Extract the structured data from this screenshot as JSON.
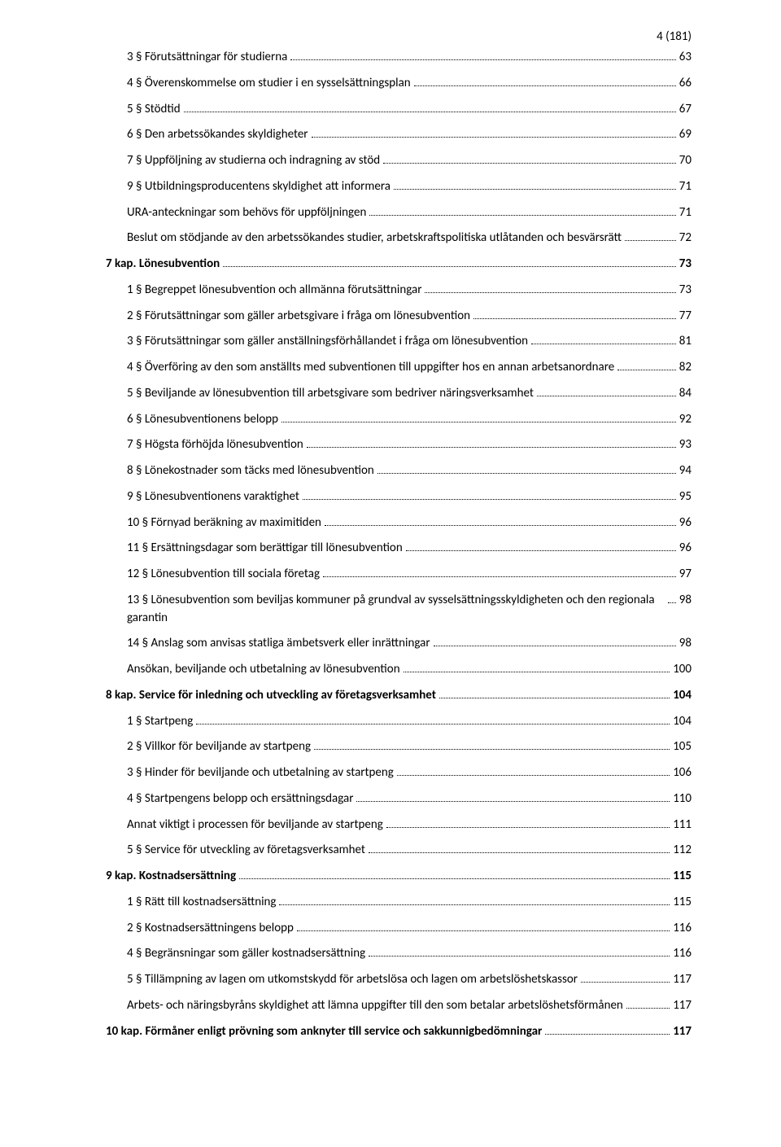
{
  "page_header": "4 (181)",
  "text_color": "#000000",
  "background_color": "#ffffff",
  "toc": [
    {
      "text": "3 § Förutsättningar för studierna",
      "page": "63",
      "indent": 1,
      "bold": false
    },
    {
      "text": "4 § Överenskommelse om studier i en sysselsättningsplan",
      "page": "66",
      "indent": 1,
      "bold": false
    },
    {
      "text": "5 § Stödtid",
      "page": "67",
      "indent": 1,
      "bold": false
    },
    {
      "text": "6 § Den arbetssökandes skyldigheter",
      "page": "69",
      "indent": 1,
      "bold": false
    },
    {
      "text": "7 § Uppföljning av studierna och indragning av stöd",
      "page": "70",
      "indent": 1,
      "bold": false
    },
    {
      "text": "9 § Utbildningsproducentens skyldighet att informera",
      "page": "71",
      "indent": 1,
      "bold": false
    },
    {
      "text": "URA-anteckningar som behövs för uppföljningen",
      "page": "71",
      "indent": 1,
      "bold": false
    },
    {
      "text": "Beslut om stödjande av den arbetssökandes studier, arbetskraftspolitiska utlåtanden och besvärsrätt",
      "page": "72",
      "indent": 1,
      "bold": false
    },
    {
      "text": "7 kap. Lönesubvention",
      "page": "73",
      "indent": 0,
      "bold": true
    },
    {
      "text": "1 § Begreppet lönesubvention och allmänna förutsättningar",
      "page": "73",
      "indent": 1,
      "bold": false
    },
    {
      "text": "2 § Förutsättningar som gäller arbetsgivare i fråga om lönesubvention",
      "page": "77",
      "indent": 1,
      "bold": false
    },
    {
      "text": "3 § Förutsättningar som gäller anställningsförhållandet i fråga om lönesubvention",
      "page": "81",
      "indent": 1,
      "bold": false
    },
    {
      "text": "4 § Överföring av den som anställts med subventionen till uppgifter hos en annan arbetsanordnare",
      "page": "82",
      "indent": 1,
      "bold": false
    },
    {
      "text": "5 § Beviljande av lönesubvention till arbetsgivare som bedriver näringsverksamhet",
      "page": "84",
      "indent": 1,
      "bold": false
    },
    {
      "text": "6 § Lönesubventionens belopp",
      "page": "92",
      "indent": 1,
      "bold": false
    },
    {
      "text": "7 § Högsta förhöjda lönesubvention",
      "page": "93",
      "indent": 1,
      "bold": false
    },
    {
      "text": "8 § Lönekostnader som täcks med lönesubvention",
      "page": "94",
      "indent": 1,
      "bold": false
    },
    {
      "text": "9 § Lönesubventionens varaktighet",
      "page": "95",
      "indent": 1,
      "bold": false
    },
    {
      "text": "10 § Förnyad beräkning av maximitiden",
      "page": "96",
      "indent": 1,
      "bold": false
    },
    {
      "text": "11 § Ersättningsdagar som berättigar till lönesubvention",
      "page": "96",
      "indent": 1,
      "bold": false
    },
    {
      "text": "12 § Lönesubvention till sociala företag",
      "page": "97",
      "indent": 1,
      "bold": false
    },
    {
      "text": "13 § Lönesubvention som beviljas kommuner på grundval av sysselsättningsskyldigheten och den regionala garantin",
      "page": "98",
      "indent": 1,
      "bold": false
    },
    {
      "text": "14 § Anslag som anvisas statliga ämbetsverk eller inrättningar",
      "page": "98",
      "indent": 1,
      "bold": false
    },
    {
      "text": "Ansökan, beviljande och utbetalning av lönesubvention",
      "page": "100",
      "indent": 1,
      "bold": false
    },
    {
      "text": "8 kap. Service för inledning och utveckling av företagsverksamhet",
      "page": "104",
      "indent": 0,
      "bold": true
    },
    {
      "text": "1 § Startpeng",
      "page": "104",
      "indent": 1,
      "bold": false
    },
    {
      "text": "2 § Villkor för beviljande av startpeng",
      "page": "105",
      "indent": 1,
      "bold": false
    },
    {
      "text": "3 § Hinder för beviljande och utbetalning av startpeng",
      "page": "106",
      "indent": 1,
      "bold": false
    },
    {
      "text": "4 § Startpengens belopp och ersättningsdagar",
      "page": "110",
      "indent": 1,
      "bold": false
    },
    {
      "text": "Annat viktigt i processen för beviljande av startpeng",
      "page": "111",
      "indent": 1,
      "bold": false
    },
    {
      "text": "5 § Service för utveckling av företagsverksamhet",
      "page": "112",
      "indent": 1,
      "bold": false
    },
    {
      "text": "9 kap. Kostnadsersättning",
      "page": "115",
      "indent": 0,
      "bold": true
    },
    {
      "text": "1 § Rätt till kostnadsersättning",
      "page": "115",
      "indent": 1,
      "bold": false
    },
    {
      "text": "2 § Kostnadsersättningens belopp",
      "page": "116",
      "indent": 1,
      "bold": false
    },
    {
      "text": "4 § Begränsningar som gäller kostnadsersättning",
      "page": "116",
      "indent": 1,
      "bold": false
    },
    {
      "text": "5 § Tillämpning av lagen om utkomstskydd för arbetslösa och lagen om arbetslöshetskassor",
      "page": "117",
      "indent": 1,
      "bold": false
    },
    {
      "text": "Arbets- och näringsbyråns skyldighet att lämna uppgifter till den som betalar arbetslöshetsförmånen",
      "page": "117",
      "indent": 1,
      "bold": false
    },
    {
      "text": "10 kap. Förmåner enligt prövning som anknyter till service och sakkunnigbedömningar",
      "page": "117",
      "indent": 0,
      "bold": true
    }
  ]
}
